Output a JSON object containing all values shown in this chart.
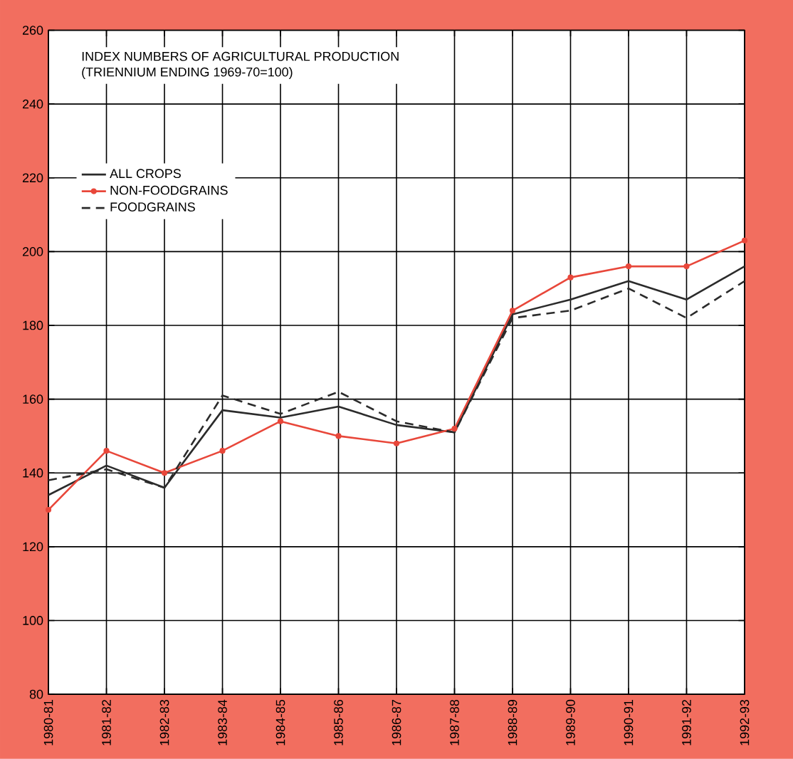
{
  "chart_data": {
    "type": "line",
    "title": "INDEX NUMBERS OF AGRICULTURAL PRODUCTION",
    "subtitle": "(TRIENNIUM ENDING 1969-70=100)",
    "categories": [
      "1980-81",
      "1981-82",
      "1982-83",
      "1983-84",
      "1984-85",
      "1985-86",
      "1986-87",
      "1987-88",
      "1988-89",
      "1989-90",
      "1990-91",
      "1991-92",
      "1992-93"
    ],
    "series": [
      {
        "name": "ALL CROPS",
        "color": "#2b2b2b",
        "line_style": "solid",
        "marker": "none",
        "values": [
          134,
          142,
          136,
          157,
          155,
          158,
          153,
          151,
          183,
          187,
          192,
          187,
          196
        ]
      },
      {
        "name": "NON-FOODGRAINS",
        "color": "#e8473a",
        "line_style": "solid",
        "marker": "circle",
        "values": [
          130,
          146,
          140,
          146,
          154,
          150,
          148,
          152,
          184,
          193,
          196,
          196,
          203
        ]
      },
      {
        "name": "FOODGRAINS",
        "color": "#2b2b2b",
        "line_style": "dashed",
        "marker": "none",
        "values": [
          138,
          141,
          136,
          161,
          156,
          162,
          154,
          151,
          182,
          184,
          190,
          182,
          192
        ]
      }
    ],
    "ylim": [
      80,
      260
    ],
    "yticks": [
      80,
      100,
      120,
      140,
      160,
      180,
      200,
      220,
      240,
      260
    ],
    "grid": true,
    "legend": "top left"
  }
}
